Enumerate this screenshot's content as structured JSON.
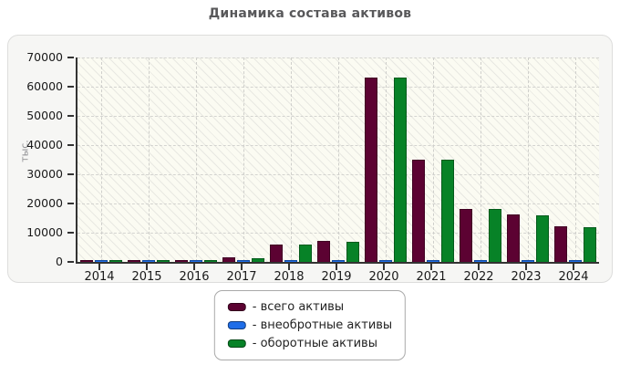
{
  "title": "Динамика состава активов",
  "y_axis_title": "тыс.",
  "legend": {
    "items": [
      {
        "label": "- всего активы",
        "color": "#5c0232"
      },
      {
        "label": "- внеобротные активы",
        "color": "#1e6de8"
      },
      {
        "label": "- оборотные активы",
        "color": "#078227"
      }
    ]
  },
  "chart_data": {
    "type": "bar",
    "title": "Динамика состава активов",
    "categories": [
      "2014",
      "2015",
      "2016",
      "2017",
      "2018",
      "2019",
      "2020",
      "2021",
      "2022",
      "2023",
      "2024"
    ],
    "series": [
      {
        "name": "всего активы",
        "color": "#5c0232",
        "values": [
          500,
          500,
          600,
          1500,
          6000,
          7200,
          63000,
          35000,
          18200,
          16300,
          12200
        ]
      },
      {
        "name": "внеобротные активы",
        "color": "#1e6de8",
        "values": [
          300,
          300,
          300,
          400,
          500,
          500,
          700,
          600,
          600,
          600,
          600
        ]
      },
      {
        "name": "оборотные активы",
        "color": "#078227",
        "values": [
          400,
          400,
          500,
          1300,
          5800,
          7000,
          63000,
          35000,
          18200,
          15900,
          12000
        ]
      }
    ],
    "ylabel": "тыс.",
    "ylim": [
      0,
      70000
    ],
    "y_ticks": [
      0,
      10000,
      20000,
      30000,
      40000,
      50000,
      60000,
      70000
    ],
    "grid": true,
    "grid_style": "dashed",
    "plot_background": "hatched",
    "legend_position": "bottom"
  }
}
